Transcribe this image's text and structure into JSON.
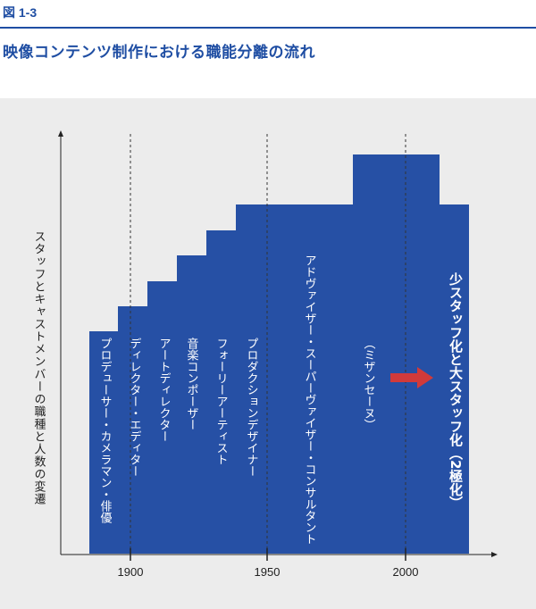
{
  "figure": {
    "label": "図 1-3",
    "title": "映像コンテンツ制作における職能分離の流れ"
  },
  "y_axis": {
    "label": "スタッフとキャストメンバーの職種と人数の変遷"
  },
  "x_axis": {
    "ticks": [
      "1900",
      "1950",
      "2000"
    ]
  },
  "roles": [
    {
      "text": "プロデューサー・カメラマン・俳優"
    },
    {
      "text": "ディレクター・エディター"
    },
    {
      "text": "アートディレクター"
    },
    {
      "text": "音楽コンポーザー"
    },
    {
      "text": "フォーリーアーティスト"
    },
    {
      "text": "プロダクションデザイナー"
    },
    {
      "text": "アドヴァイザー・スーパーヴァイザー・コンサルタント"
    },
    {
      "text": "（ミザンセーヌ）"
    },
    {
      "text": "少スタッフ化と大スタッフ化（2極化）"
    }
  ],
  "colors": {
    "bar": "#2650a5",
    "arrow": "#d13a3a",
    "panel": "#ececec",
    "accent": "#1f4ea3"
  }
}
